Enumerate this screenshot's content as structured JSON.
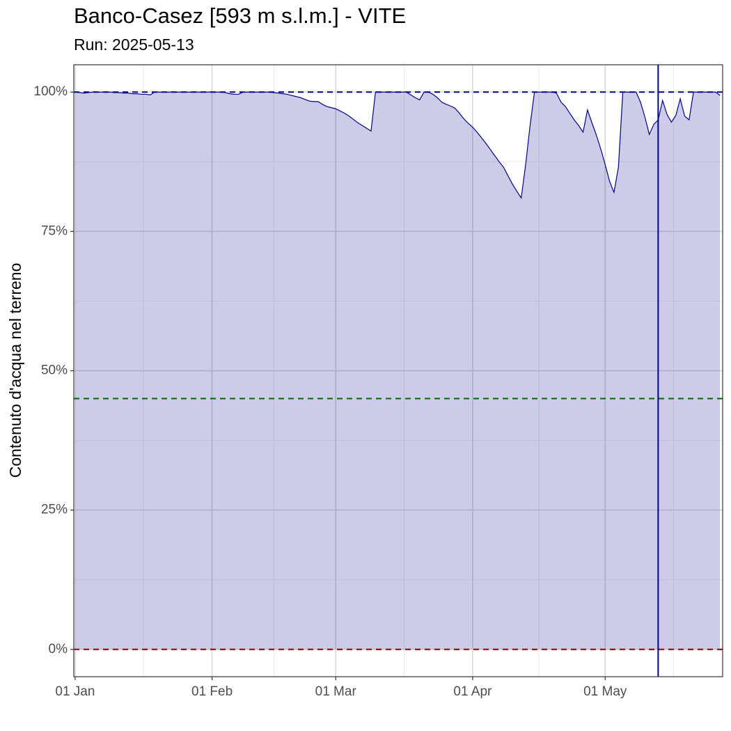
{
  "chart_data": {
    "type": "area",
    "title": "Banco-Casez [593 m s.l.m.] - VITE",
    "subtitle": "Run: 2025-05-13",
    "y_label": "Contenuto d'acqua nel terreno",
    "x": [
      0,
      1,
      2,
      3,
      4,
      5,
      6,
      7,
      8,
      9,
      10,
      11,
      12,
      13,
      14,
      15,
      16,
      17,
      18,
      19,
      20,
      21,
      22,
      23,
      24,
      25,
      26,
      27,
      28,
      29,
      30,
      31,
      32,
      33,
      34,
      35,
      36,
      37,
      38,
      39,
      40,
      41,
      42,
      43,
      44,
      45,
      46,
      47,
      48,
      49,
      50,
      51,
      52,
      53,
      54,
      55,
      56,
      57,
      58,
      59,
      60,
      61,
      62,
      63,
      64,
      65,
      66,
      67,
      68,
      69,
      70,
      71,
      72,
      73,
      74,
      75,
      76,
      77,
      78,
      79,
      80,
      81,
      82,
      83,
      84,
      85,
      86,
      87,
      88,
      89,
      90,
      91,
      92,
      93,
      94,
      95,
      96,
      97,
      98,
      99,
      100,
      101,
      102,
      103,
      104,
      105,
      106,
      107,
      108,
      109,
      110,
      111,
      112,
      113,
      114,
      115,
      116,
      117,
      118,
      119,
      120,
      121,
      122,
      123,
      124,
      125,
      126,
      127,
      128,
      129,
      130,
      131,
      132,
      133,
      134,
      135,
      136,
      137,
      138,
      139,
      140,
      141,
      142,
      143,
      144,
      145,
      146
    ],
    "values": [
      100,
      99.9,
      99.8,
      99.9,
      100,
      100,
      100,
      100,
      100,
      99.9,
      99.9,
      99.8,
      99.8,
      99.7,
      99.7,
      99.6,
      99.6,
      99.5,
      100,
      100,
      100,
      100,
      100,
      100,
      100,
      100,
      100,
      100,
      100,
      100,
      100,
      100,
      100,
      100,
      99.9,
      99.7,
      99.6,
      99.6,
      100,
      100,
      100,
      100,
      100,
      100,
      100,
      99.9,
      99.8,
      99.7,
      99.6,
      99.4,
      99.2,
      99,
      98.7,
      98.4,
      98.3,
      98.3,
      97.8,
      97.4,
      97.2,
      97,
      96.6,
      96.2,
      95.7,
      95.1,
      94.5,
      94,
      93.5,
      93,
      100,
      100,
      100,
      100,
      100,
      100,
      100,
      100,
      99.5,
      99,
      98.6,
      100,
      100,
      99.6,
      99,
      98.2,
      97.8,
      97.5,
      97.1,
      96.2,
      95.2,
      94.4,
      93.7,
      92.8,
      91.8,
      90.8,
      89.7,
      88.6,
      87.5,
      86.5,
      85,
      83.5,
      82.2,
      81,
      87,
      94,
      100,
      100,
      100,
      100,
      100,
      99.8,
      98.2,
      97.4,
      96.2,
      95,
      94,
      92.8,
      96.8,
      94.5,
      92.3,
      89.8,
      87,
      84,
      82,
      86.5,
      100,
      100,
      100,
      100,
      98.2,
      95.5,
      92.4,
      94.2,
      95,
      98.5,
      96,
      94.6,
      95.8,
      98.8,
      95.7,
      95,
      100,
      100,
      100,
      100,
      100,
      100,
      99.4
    ],
    "color": "#00008b",
    "fill_alpha": 0.2,
    "xlim": [
      -0.3,
      146.6
    ],
    "xticks": [
      {
        "value": 0,
        "label": "01 Jan"
      },
      {
        "value": 31,
        "label": "01 Feb"
      },
      {
        "value": 59,
        "label": "01 Mar"
      },
      {
        "value": 90,
        "label": "01 Apr"
      },
      {
        "value": 120,
        "label": "01 May"
      }
    ],
    "xminorticks": [
      15.5,
      45,
      74.5,
      105,
      135.5
    ],
    "ylim": [
      -4.9,
      104.9
    ],
    "yticks": [
      {
        "value": 0,
        "label": "0%"
      },
      {
        "value": 25,
        "label": "25%"
      },
      {
        "value": 50,
        "label": "50%"
      },
      {
        "value": 75,
        "label": "75%"
      },
      {
        "value": 100,
        "label": "100%"
      }
    ],
    "yminorticks": [
      12.5,
      37.5,
      62.5,
      87.5
    ],
    "grid": true,
    "hlines": [
      {
        "value": 100,
        "color": "#00008b"
      },
      {
        "value": 45,
        "color": "#006400"
      },
      {
        "value": 0,
        "color": "#8b0000"
      }
    ],
    "vline": {
      "value": 132,
      "color": "#00008b"
    }
  }
}
